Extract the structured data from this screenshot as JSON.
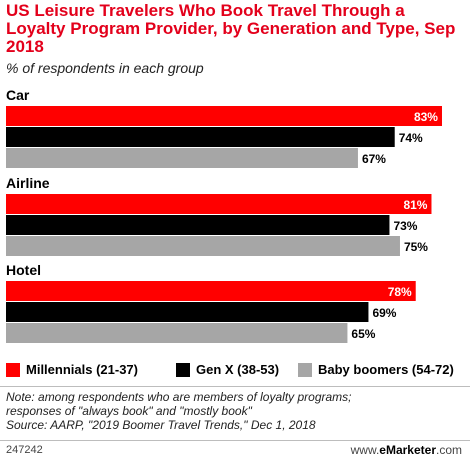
{
  "header": {
    "title": "US Leisure Travelers Who Book Travel Through a Loyalty Program Provider, by Generation and Type, Sep 2018",
    "subtitle": "% of respondents in each group"
  },
  "colors": {
    "millennials": "#ff0000",
    "genx": "#000000",
    "boomers": "#a6a6a6",
    "title": "#e3001b"
  },
  "chart_data": {
    "type": "bar",
    "orientation": "horizontal",
    "categories": [
      "Car",
      "Airline",
      "Hotel"
    ],
    "series": [
      {
        "name": "Millennials (21-37)",
        "values": [
          83,
          81,
          78
        ],
        "labels": [
          "83%",
          "81%",
          "78%"
        ]
      },
      {
        "name": "Gen X (38-53)",
        "values": [
          74,
          73,
          69
        ],
        "labels": [
          "74%",
          "73%",
          "69%"
        ]
      },
      {
        "name": "Baby boomers (54-72)",
        "values": [
          67,
          75,
          65
        ],
        "labels": [
          "67%",
          "75%",
          "65%"
        ]
      }
    ],
    "xlim": [
      0,
      87
    ],
    "grid": false,
    "legend_position": "bottom"
  },
  "footer": {
    "note_line1": "Note: among respondents who are members of loyalty programs;",
    "note_line2": "responses of \"always book\" and \"mostly book\"",
    "source": "Source: AARP, \"2019 Boomer Travel Trends,\" Dec 1, 2018",
    "id": "247242",
    "brand_prefix": "www.",
    "brand_name": "eMarketer",
    "brand_suffix": ".com"
  }
}
